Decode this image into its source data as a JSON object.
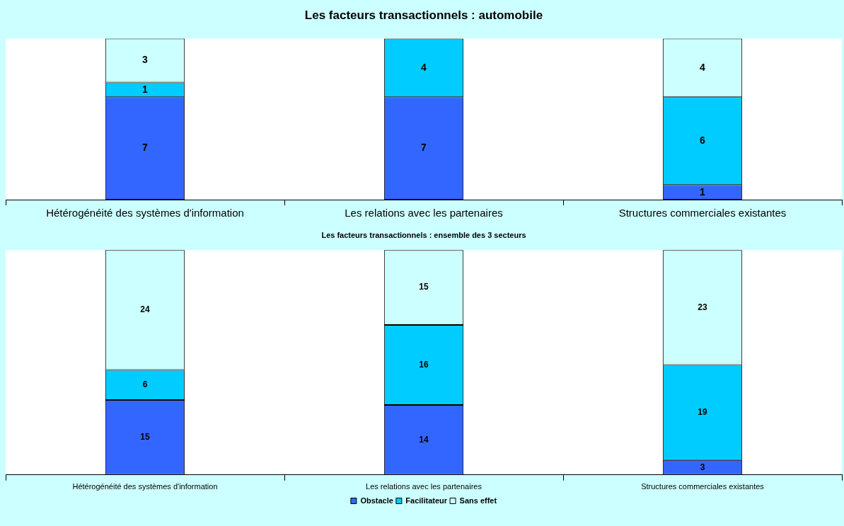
{
  "chart_data": [
    {
      "type": "bar",
      "title": "Les facteurs transactionnels : automobile",
      "categories": [
        "Hétérogénéité des systèmes d'information",
        "Les relations avec les partenaires",
        "Structures commerciales existantes"
      ],
      "stacked": true,
      "data_labels": true,
      "legend": false,
      "grid": false,
      "series": [
        {
          "color": "#3366ff",
          "values": [
            7,
            7,
            1
          ]
        },
        {
          "color": "#00ccff",
          "values": [
            1,
            4,
            6
          ]
        },
        {
          "color": "#ccffff",
          "values": [
            3,
            null,
            4
          ]
        }
      ]
    },
    {
      "type": "bar",
      "title": "Les facteurs transactionnels : ensemble des 3 secteurs",
      "categories": [
        "Hétérogénéité des systèmes d'information",
        "Les relations avec les partenaires",
        "Structures commerciales existantes"
      ],
      "stacked": true,
      "data_labels": true,
      "legend": "bottom",
      "grid": false,
      "series": [
        {
          "name": "Obstacle",
          "color": "#3366ff",
          "values": [
            15,
            14,
            3
          ]
        },
        {
          "name": "Facilitateur",
          "color": "#00ccff",
          "values": [
            6,
            16,
            19
          ]
        },
        {
          "name": "Sans effet",
          "color": "#ccffff",
          "values": [
            24,
            15,
            23
          ]
        }
      ]
    }
  ]
}
